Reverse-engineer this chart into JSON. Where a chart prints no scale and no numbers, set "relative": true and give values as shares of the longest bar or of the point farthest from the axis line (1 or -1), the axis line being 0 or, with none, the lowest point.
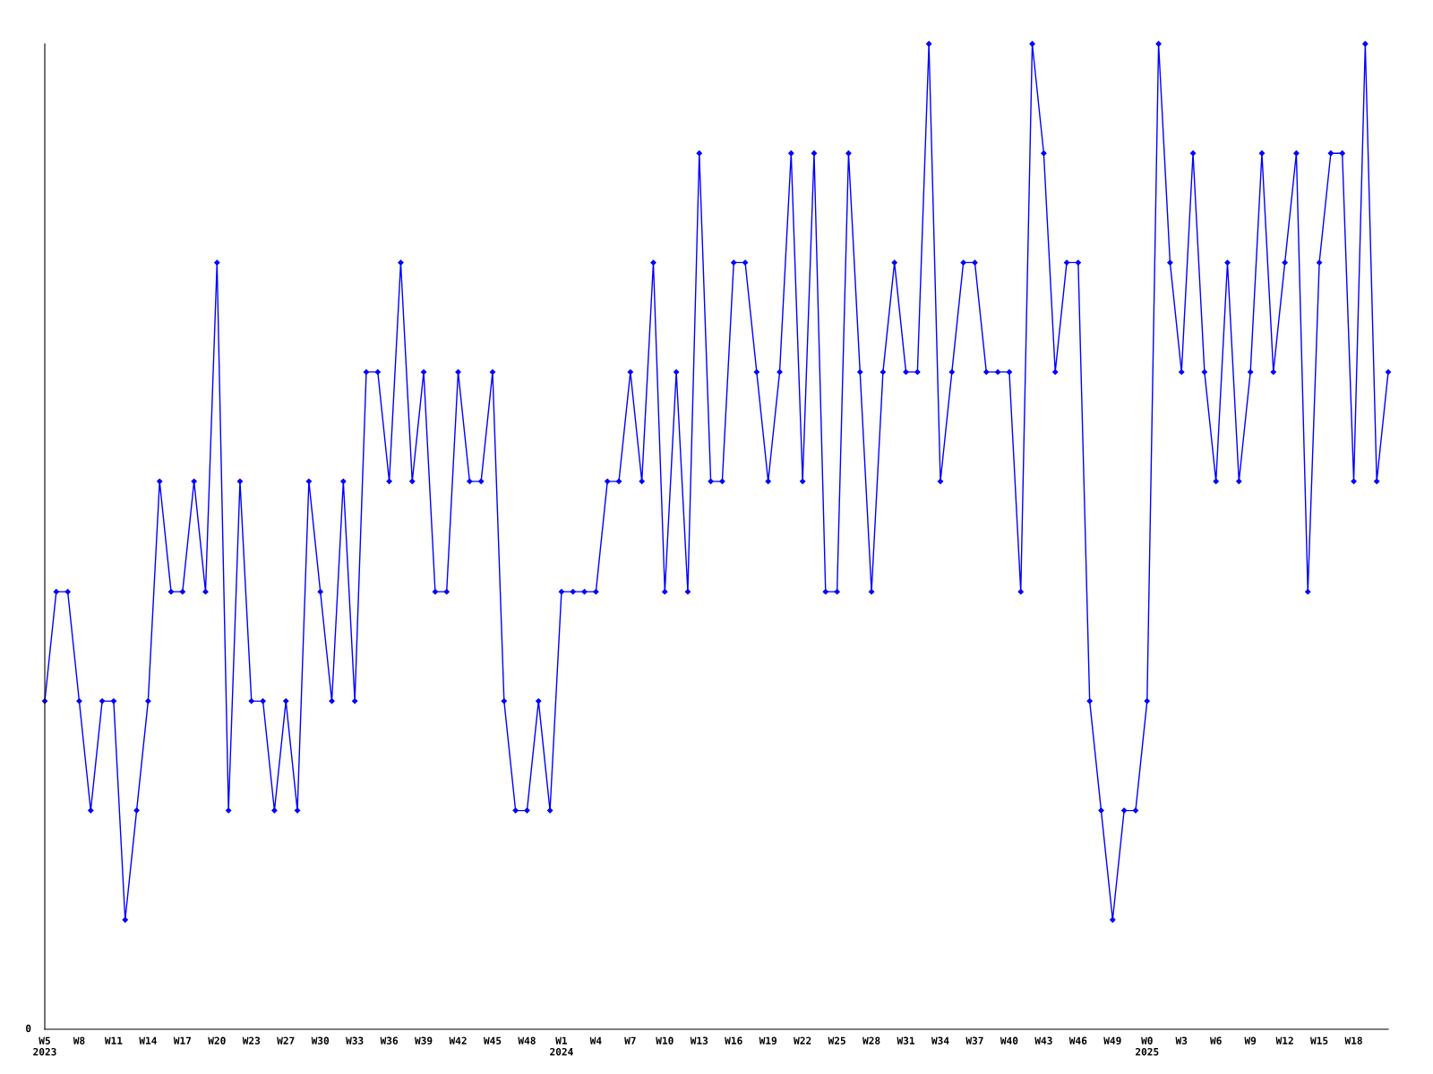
{
  "chart_data": {
    "type": "line",
    "relative": true,
    "marker": "diamond",
    "line_style": "solid",
    "grid": false,
    "legend": false,
    "categories": [
      "W5\n2023",
      null,
      null,
      "W8",
      null,
      null,
      "W11",
      null,
      null,
      "W14",
      null,
      null,
      "W17",
      null,
      null,
      "W20",
      null,
      null,
      "W23",
      null,
      null,
      "W27",
      null,
      null,
      "W30",
      null,
      null,
      "W33",
      null,
      null,
      "W36",
      null,
      null,
      "W39",
      null,
      null,
      "W42",
      null,
      null,
      "W45",
      null,
      null,
      "W48",
      null,
      null,
      "W1\n2024",
      null,
      null,
      "W4",
      null,
      null,
      "W7",
      null,
      null,
      "W10",
      null,
      null,
      "W13",
      null,
      null,
      "W16",
      null,
      null,
      "W19",
      null,
      null,
      "W22",
      null,
      null,
      "W25",
      null,
      null,
      "W28",
      null,
      null,
      "W31",
      null,
      null,
      "W34",
      null,
      null,
      "W37",
      null,
      null,
      "W40",
      null,
      null,
      "W43",
      null,
      null,
      "W46",
      null,
      null,
      "W49",
      null,
      null,
      "W0\n2025",
      null,
      null,
      "W3",
      null,
      null,
      "W6",
      null,
      null,
      "W9",
      null,
      null,
      "W12",
      null,
      null,
      "W15",
      null,
      null,
      "W18",
      null,
      null,
      null
    ],
    "series": [
      {
        "color": "#0000ff",
        "values": [
          0.333,
          0.444,
          0.444,
          0.333,
          0.222,
          0.333,
          0.333,
          0.111,
          0.222,
          0.333,
          0.556,
          0.444,
          0.444,
          0.556,
          0.444,
          0.778,
          0.222,
          0.556,
          0.333,
          0.333,
          0.222,
          0.333,
          0.222,
          0.556,
          0.444,
          0.333,
          0.556,
          0.333,
          0.667,
          0.667,
          0.556,
          0.778,
          0.556,
          0.667,
          0.444,
          0.444,
          0.667,
          0.556,
          0.556,
          0.667,
          0.333,
          0.222,
          0.222,
          0.333,
          0.222,
          0.444,
          0.444,
          0.444,
          0.444,
          0.556,
          0.556,
          0.667,
          0.556,
          0.778,
          0.444,
          0.667,
          0.444,
          0.889,
          0.556,
          0.556,
          0.778,
          0.778,
          0.667,
          0.556,
          0.667,
          0.889,
          0.556,
          0.889,
          0.444,
          0.444,
          0.889,
          0.667,
          0.444,
          0.667,
          0.778,
          0.667,
          0.667,
          1.0,
          0.556,
          0.667,
          0.778,
          0.778,
          0.667,
          0.667,
          0.667,
          0.444,
          1.0,
          0.889,
          0.667,
          0.778,
          0.778,
          0.333,
          0.222,
          0.111,
          0.222,
          0.222,
          0.333,
          1.0,
          0.778,
          0.667,
          0.889,
          0.667,
          0.556,
          0.778,
          0.556,
          0.667,
          0.889,
          0.667,
          0.778,
          0.889,
          0.444,
          0.778,
          0.889,
          0.889,
          0.556,
          1.0,
          0.556,
          0.667
        ]
      }
    ],
    "annotations": [
      "0"
    ]
  }
}
